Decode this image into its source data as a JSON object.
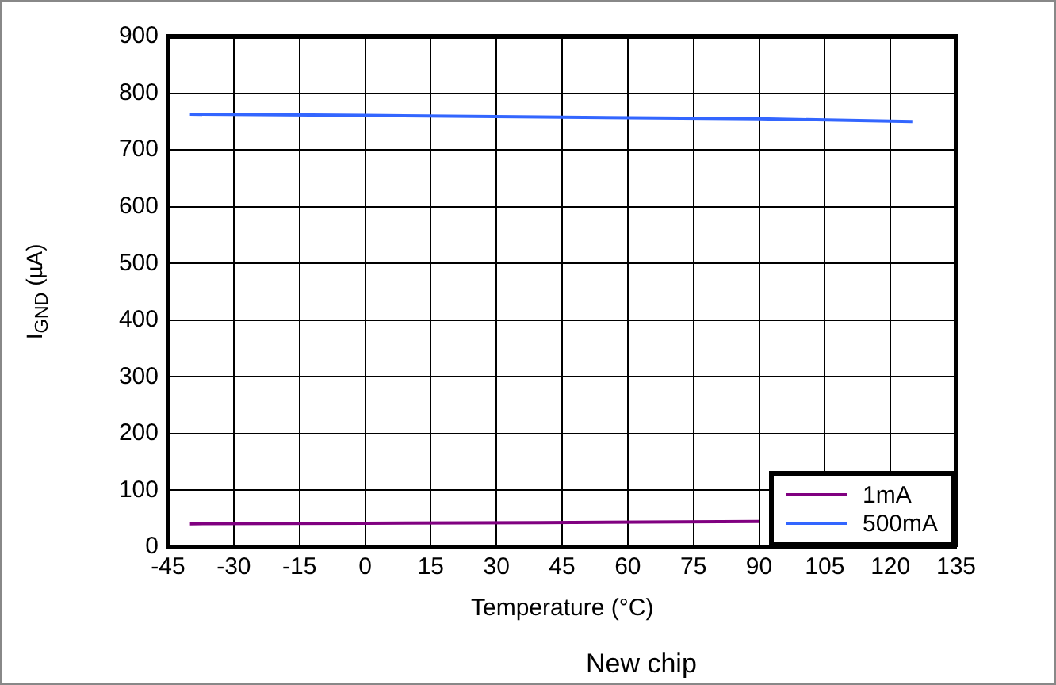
{
  "chart_data": {
    "type": "line",
    "title": "New chip",
    "xlabel": "Temperature (°C)",
    "ylabel": "I$_{GND}$ (µA)",
    "xlim": [
      -45,
      135
    ],
    "xticks": [
      -45,
      -30,
      -15,
      0,
      15,
      30,
      45,
      60,
      75,
      90,
      105,
      120,
      135
    ],
    "ylim": [
      0,
      900
    ],
    "yticks": [
      0,
      100,
      200,
      300,
      400,
      500,
      600,
      700,
      800,
      900
    ],
    "grid": true,
    "legend": "bottom right",
    "marker": "none",
    "line_style": "solid",
    "series": [
      {
        "name": "1mA",
        "color": "#800080",
        "x": [
          -40,
          0,
          40,
          90
        ],
        "values": [
          41,
          42,
          43,
          45
        ]
      },
      {
        "name": "500mA",
        "color": "#3366ff",
        "x": [
          -40,
          0,
          40,
          90,
          125
        ],
        "values": [
          763,
          761,
          758,
          755,
          750
        ]
      }
    ]
  }
}
